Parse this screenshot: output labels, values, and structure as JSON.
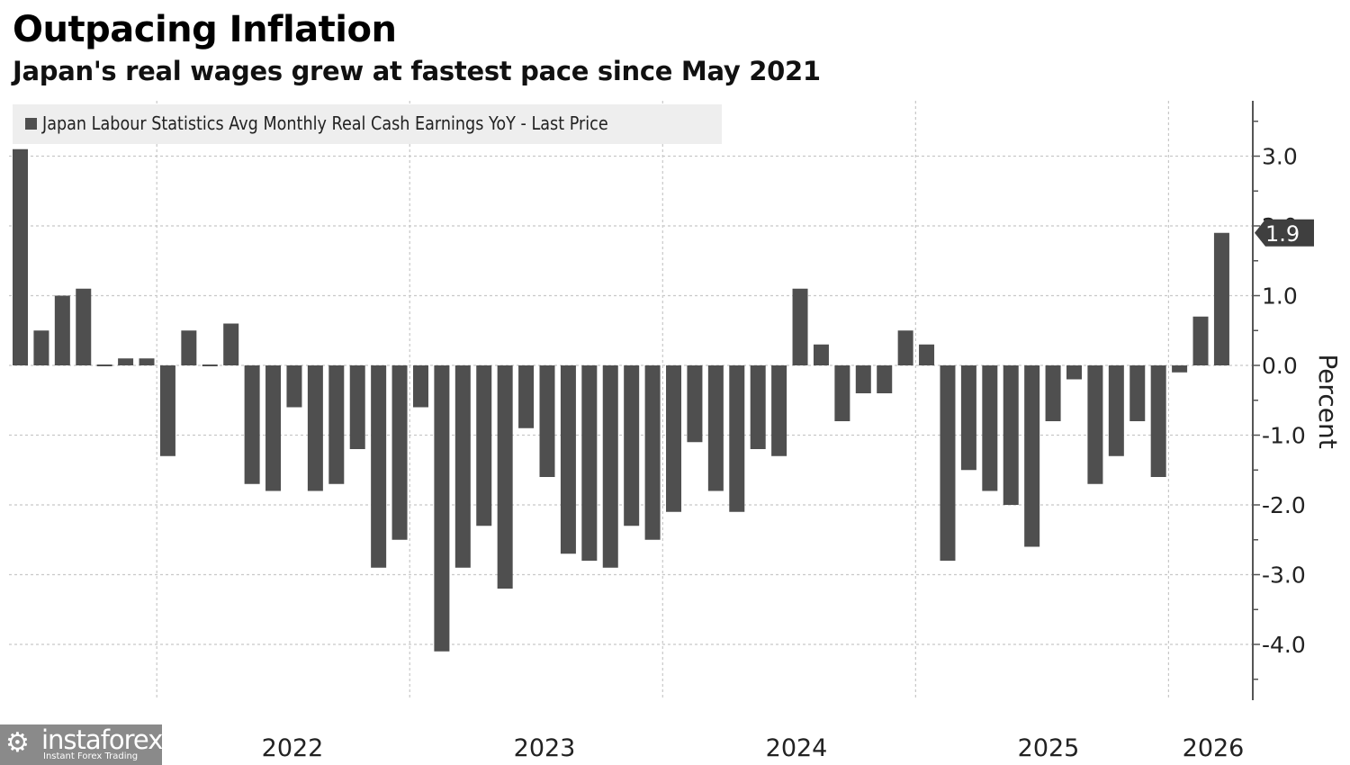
{
  "header": {
    "title": "Outpacing Inflation",
    "subtitle": "Japan's real wages grew at fastest pace since May 2021"
  },
  "legend": {
    "label": "Japan Labour Statistics Avg Monthly Real Cash Earnings YoY - Last Price"
  },
  "watermark": {
    "icon": "gear-person-icon",
    "name": "instaforex",
    "tagline": "Instant Forex Trading"
  },
  "colors": {
    "bar": "#4f4f4f",
    "grid": "#c8c8c8",
    "axis": "#555555",
    "badge": "#3f3f3f"
  },
  "chart_data": {
    "type": "bar",
    "title": "Outpacing Inflation",
    "subtitle": "Japan's real wages grew at fastest pace since May 2021",
    "xlabel": "",
    "ylabel": "Percent",
    "ylim": [
      -4.8,
      3.8
    ],
    "yticks": [
      3.0,
      2.0,
      1.0,
      0.0,
      -1.0,
      -2.0,
      -3.0,
      -4.0
    ],
    "ytick_labels": [
      "3.0",
      "2.0",
      "1.0",
      "0.0",
      "-1.0",
      "-2.0",
      "-3.0",
      "-4.0"
    ],
    "y_axis_position": "right",
    "grid": true,
    "legend_position": "top-left",
    "series": [
      {
        "name": "Japan Labour Statistics Avg Monthly Real Cash Earnings YoY - Last Price",
        "values": [
          3.1,
          0.5,
          1.0,
          1.1,
          0.0,
          0.1,
          0.1,
          -1.3,
          0.5,
          0.0,
          0.6,
          -1.7,
          -1.8,
          -0.6,
          -1.8,
          -1.7,
          -1.2,
          -2.9,
          -2.5,
          -0.6,
          -4.1,
          -2.9,
          -2.3,
          -3.2,
          -0.9,
          -1.6,
          -2.7,
          -2.8,
          -2.9,
          -2.3,
          -2.5,
          -2.1,
          -1.1,
          -1.8,
          -2.1,
          -1.2,
          -1.3,
          1.1,
          0.3,
          -0.8,
          -0.4,
          -0.4,
          0.5,
          0.3,
          -2.8,
          -1.5,
          -1.8,
          -2.0,
          -2.6,
          -0.8,
          -0.2,
          -1.7,
          -1.3,
          -0.8,
          -1.6,
          -0.1,
          0.7,
          1.9
        ]
      }
    ],
    "year_labels": [
      "2022",
      "2023",
      "2024",
      "2025",
      "2026"
    ],
    "year_start_index": [
      7,
      19,
      31,
      43,
      55
    ],
    "last_value_label": "1.9"
  }
}
